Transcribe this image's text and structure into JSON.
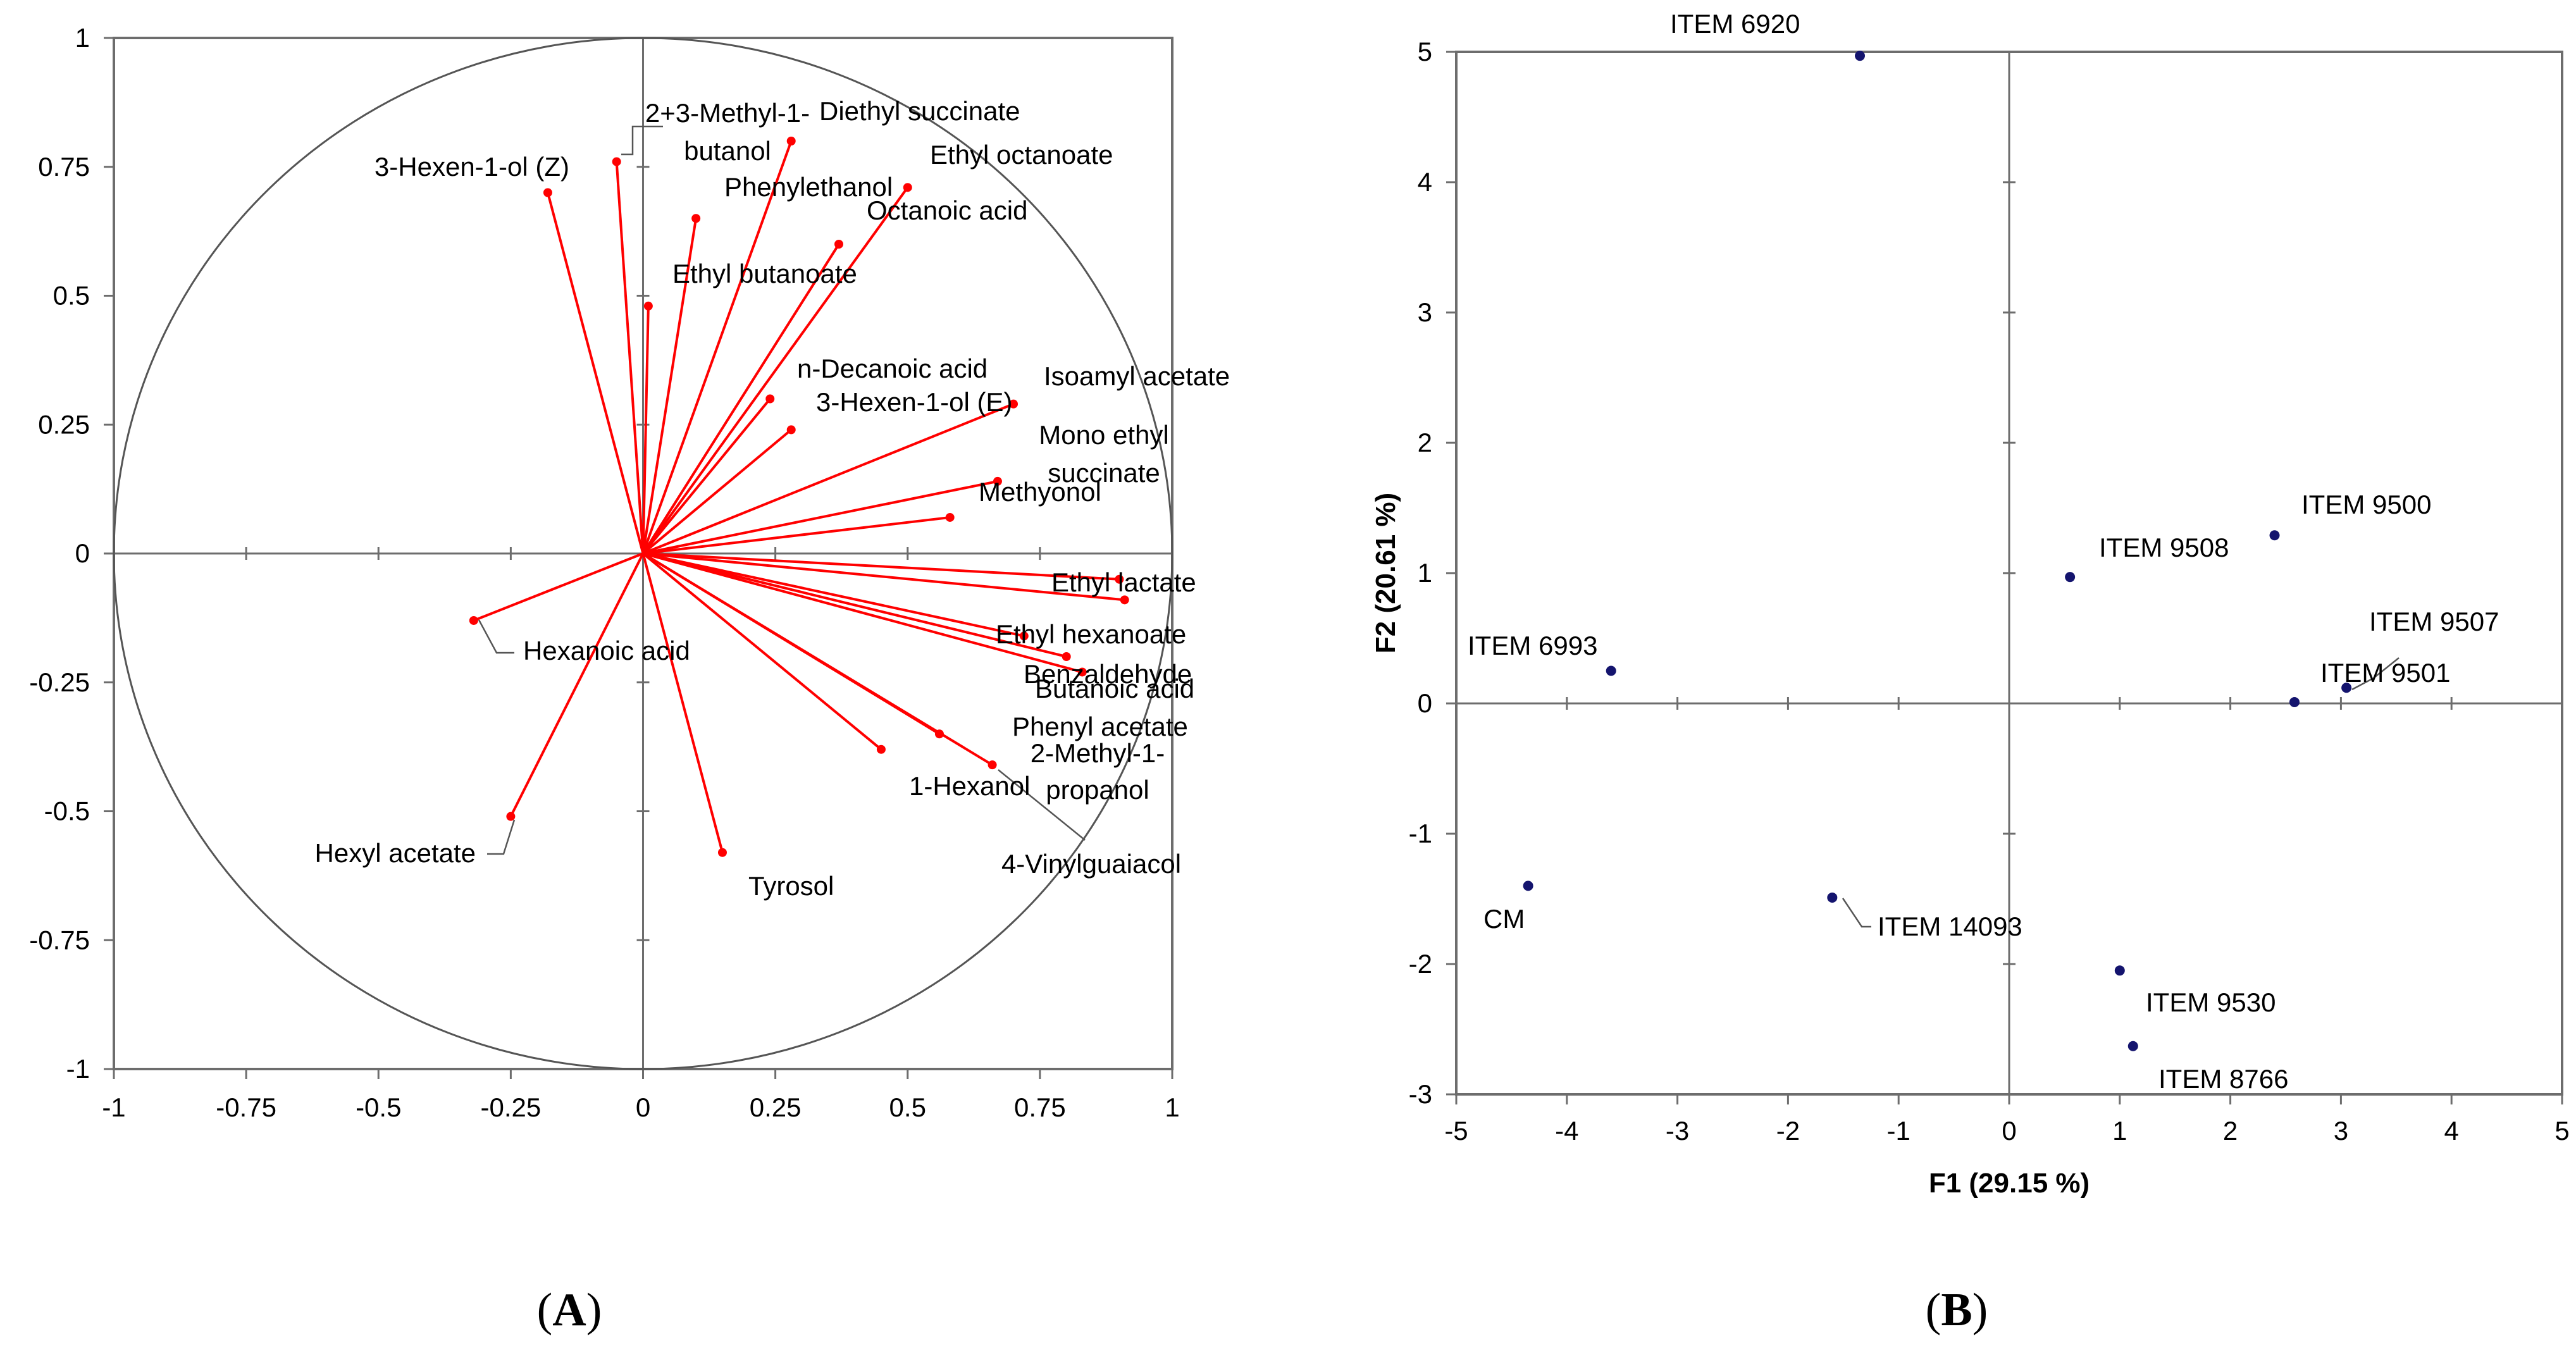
{
  "chart_data": [
    {
      "id": "A",
      "type": "scatter",
      "subtype": "correlation-circle",
      "panel_label": "A",
      "title": "",
      "xlabel": "",
      "ylabel": "",
      "xlim": [
        -1,
        1
      ],
      "ylim": [
        -1,
        1
      ],
      "xticks": [
        -1,
        -0.75,
        -0.5,
        -0.25,
        0,
        0.25,
        0.5,
        0.75,
        1
      ],
      "yticks": [
        -1,
        -0.75,
        -0.5,
        -0.25,
        0,
        0.25,
        0.5,
        0.75,
        1
      ],
      "xtick_labels": [
        "-1",
        "-0.75",
        "-0.5",
        "-0.25",
        "0",
        "0.25",
        "0.5",
        "0.75",
        "1"
      ],
      "ytick_labels": [
        "-1",
        "-0.75",
        "-0.5",
        "-0.25",
        "0",
        "0.25",
        "0.5",
        "0.75",
        "1"
      ],
      "vector_color": "#ff0000",
      "circle_color": "#555555",
      "variables": [
        {
          "name": "3-Hexen-1-ol  (Z)",
          "x": -0.18,
          "y": 0.7
        },
        {
          "name": "2+3-Methyl-1-butanol",
          "x": -0.05,
          "y": 0.76
        },
        {
          "name": "Diethyl succinate",
          "x": 0.28,
          "y": 0.8
        },
        {
          "name": "Ethyl octanoate",
          "x": 0.5,
          "y": 0.71
        },
        {
          "name": "Phenylethanol",
          "x": 0.1,
          "y": 0.65
        },
        {
          "name": "Octanoic acid",
          "x": 0.37,
          "y": 0.6
        },
        {
          "name": "Ethyl butanoate",
          "x": 0.01,
          "y": 0.48
        },
        {
          "name": "n-Decanoic acid",
          "x": 0.24,
          "y": 0.3
        },
        {
          "name": "3-Hexen-1-ol (E)",
          "x": 0.28,
          "y": 0.24
        },
        {
          "name": "Isoamyl acetate",
          "x": 0.7,
          "y": 0.29
        },
        {
          "name": "Mono ethyl succinate",
          "x": 0.67,
          "y": 0.14
        },
        {
          "name": "Methyonol",
          "x": 0.58,
          "y": 0.07
        },
        {
          "name": "Ethyl lactate",
          "x": 0.9,
          "y": -0.05
        },
        {
          "name": "Ethyl hexanoate",
          "x": 0.91,
          "y": -0.09
        },
        {
          "name": "Benzaldehyde",
          "x": 0.72,
          "y": -0.16
        },
        {
          "name": "Butanoic acid",
          "x": 0.8,
          "y": -0.2
        },
        {
          "name": "Phenyl acetate",
          "x": 0.83,
          "y": -0.23
        },
        {
          "name": "2-Methyl-1-propanol",
          "x": 0.56,
          "y": -0.35
        },
        {
          "name": "1-Hexanol",
          "x": 0.45,
          "y": -0.38
        },
        {
          "name": "4-Vinylguaiacol",
          "x": 0.66,
          "y": -0.41
        },
        {
          "name": "Tyrosol",
          "x": 0.15,
          "y": -0.58
        },
        {
          "name": "Hexanoic acid",
          "x": -0.32,
          "y": -0.13
        },
        {
          "name": "Hexyl acetate",
          "x": -0.25,
          "y": -0.51
        }
      ]
    },
    {
      "id": "B",
      "type": "scatter",
      "panel_label": "B",
      "title": "",
      "xlabel": "F1 (29.15 %)",
      "ylabel": "F2 (20.61 %)",
      "xlim": [
        -5,
        5
      ],
      "ylim": [
        -3,
        5
      ],
      "xticks": [
        -5,
        -4,
        -3,
        -2,
        -1,
        0,
        1,
        2,
        3,
        4,
        5
      ],
      "yticks": [
        -3,
        -2,
        -1,
        0,
        1,
        2,
        3,
        4,
        5
      ],
      "xtick_labels": [
        "-5",
        "-4",
        "-3",
        "-2",
        "-1",
        "0",
        "1",
        "2",
        "3",
        "4",
        "5"
      ],
      "ytick_labels": [
        "-3",
        "-2",
        "-1",
        "0",
        "1",
        "2",
        "3",
        "4",
        "5"
      ],
      "point_color": "#14146e",
      "points": [
        {
          "label": "ITEM 6920",
          "x": -1.35,
          "y": 4.97
        },
        {
          "label": "ITEM 9500",
          "x": 2.4,
          "y": 1.29
        },
        {
          "label": "ITEM 9508",
          "x": 0.55,
          "y": 0.97
        },
        {
          "label": "ITEM 6993",
          "x": -3.6,
          "y": 0.25
        },
        {
          "label": "ITEM 9507",
          "x": 3.05,
          "y": 0.12
        },
        {
          "label": "ITEM 9501",
          "x": 2.58,
          "y": 0.01
        },
        {
          "label": "CM",
          "x": -4.35,
          "y": -1.4
        },
        {
          "label": "ITEM 14093",
          "x": -1.6,
          "y": -1.49
        },
        {
          "label": "ITEM 9530",
          "x": 1.0,
          "y": -2.05
        },
        {
          "label": "ITEM 8766",
          "x": 1.12,
          "y": -2.63
        }
      ]
    }
  ]
}
